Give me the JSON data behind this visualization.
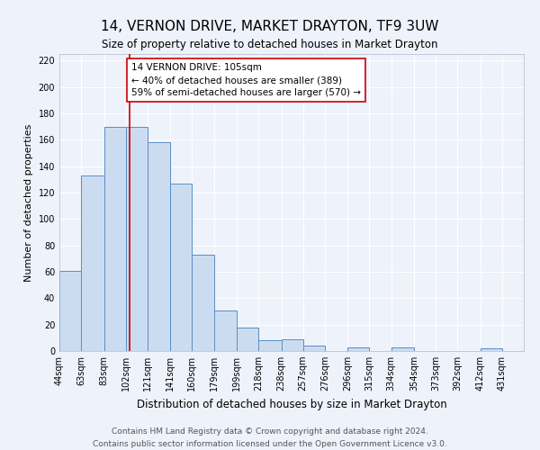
{
  "title": "14, VERNON DRIVE, MARKET DRAYTON, TF9 3UW",
  "subtitle": "Size of property relative to detached houses in Market Drayton",
  "xlabel": "Distribution of detached houses by size in Market Drayton",
  "ylabel": "Number of detached properties",
  "bin_labels": [
    "44sqm",
    "63sqm",
    "83sqm",
    "102sqm",
    "121sqm",
    "141sqm",
    "160sqm",
    "179sqm",
    "199sqm",
    "218sqm",
    "238sqm",
    "257sqm",
    "276sqm",
    "296sqm",
    "315sqm",
    "334sqm",
    "354sqm",
    "373sqm",
    "392sqm",
    "412sqm",
    "431sqm"
  ],
  "bin_edges": [
    44,
    63,
    83,
    102,
    121,
    141,
    160,
    179,
    199,
    218,
    238,
    257,
    276,
    296,
    315,
    334,
    354,
    373,
    392,
    412,
    431,
    450
  ],
  "bar_heights": [
    61,
    133,
    170,
    170,
    158,
    127,
    73,
    31,
    18,
    8,
    9,
    4,
    0,
    3,
    0,
    3,
    0,
    0,
    0,
    2,
    0
  ],
  "bar_color": "#ccdcf0",
  "bar_edge_color": "#5b8ec4",
  "vline_x": 105,
  "vline_color": "#cc0000",
  "annotation_text": "14 VERNON DRIVE: 105sqm\n← 40% of detached houses are smaller (389)\n59% of semi-detached houses are larger (570) →",
  "annotation_box_color": "#ffffff",
  "annotation_box_edge_color": "#cc0000",
  "ylim": [
    0,
    225
  ],
  "yticks": [
    0,
    20,
    40,
    60,
    80,
    100,
    120,
    140,
    160,
    180,
    200,
    220
  ],
  "footer_line1": "Contains HM Land Registry data © Crown copyright and database right 2024.",
  "footer_line2": "Contains public sector information licensed under the Open Government Licence v3.0.",
  "background_color": "#eef2fb",
  "grid_color": "#ffffff",
  "title_fontsize": 11,
  "subtitle_fontsize": 8.5,
  "axis_label_fontsize": 8,
  "tick_fontsize": 7,
  "annotation_fontsize": 7.5,
  "footer_fontsize": 6.5
}
